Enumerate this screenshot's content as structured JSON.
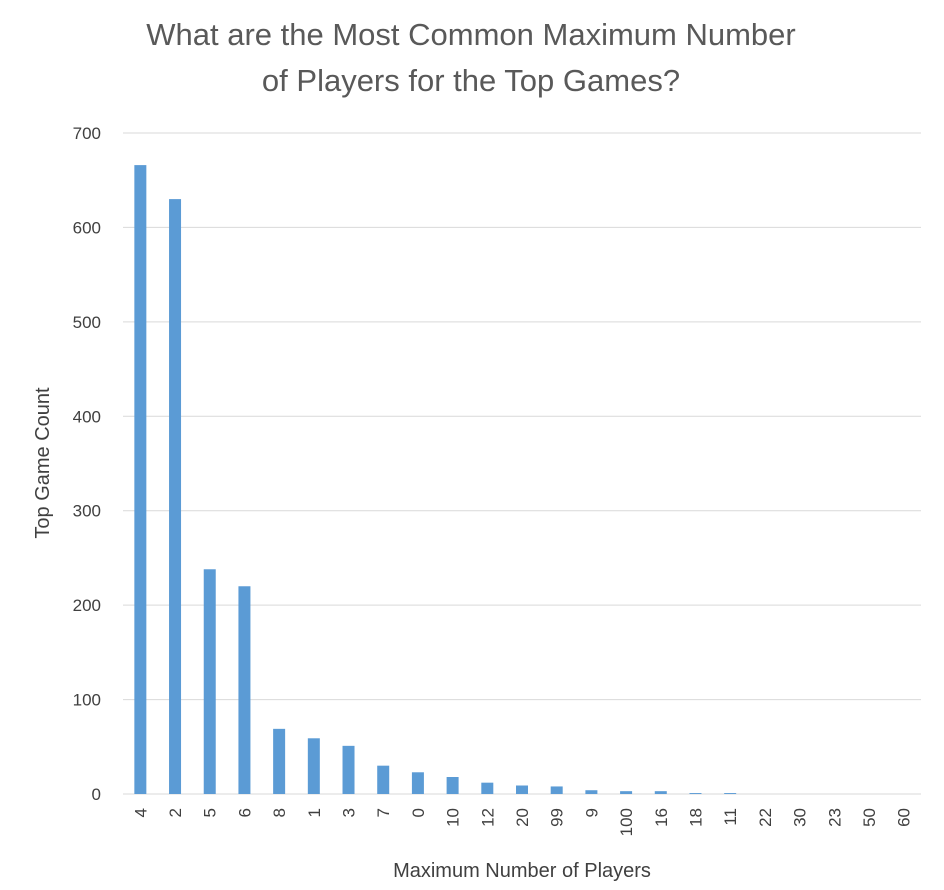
{
  "chart_data": {
    "type": "bar",
    "title_lines": [
      "What are the Most Common Maximum Number",
      "of Players for the Top Games?"
    ],
    "xlabel": "Maximum Number of Players",
    "ylabel": "Top Game Count",
    "categories": [
      "4",
      "2",
      "5",
      "6",
      "8",
      "1",
      "3",
      "7",
      "0",
      "10",
      "12",
      "20",
      "99",
      "9",
      "100",
      "16",
      "18",
      "11",
      "22",
      "30",
      "23",
      "50",
      "60"
    ],
    "values": [
      666,
      630,
      238,
      220,
      69,
      59,
      51,
      30,
      23,
      18,
      12,
      9,
      8,
      4,
      3,
      3,
      1,
      1,
      0,
      0,
      0,
      0,
      0
    ],
    "ylim": [
      0,
      700
    ],
    "yticks": [
      0,
      100,
      200,
      300,
      400,
      500,
      600,
      700
    ],
    "grid": true,
    "bar_color": "#5b9bd5"
  }
}
